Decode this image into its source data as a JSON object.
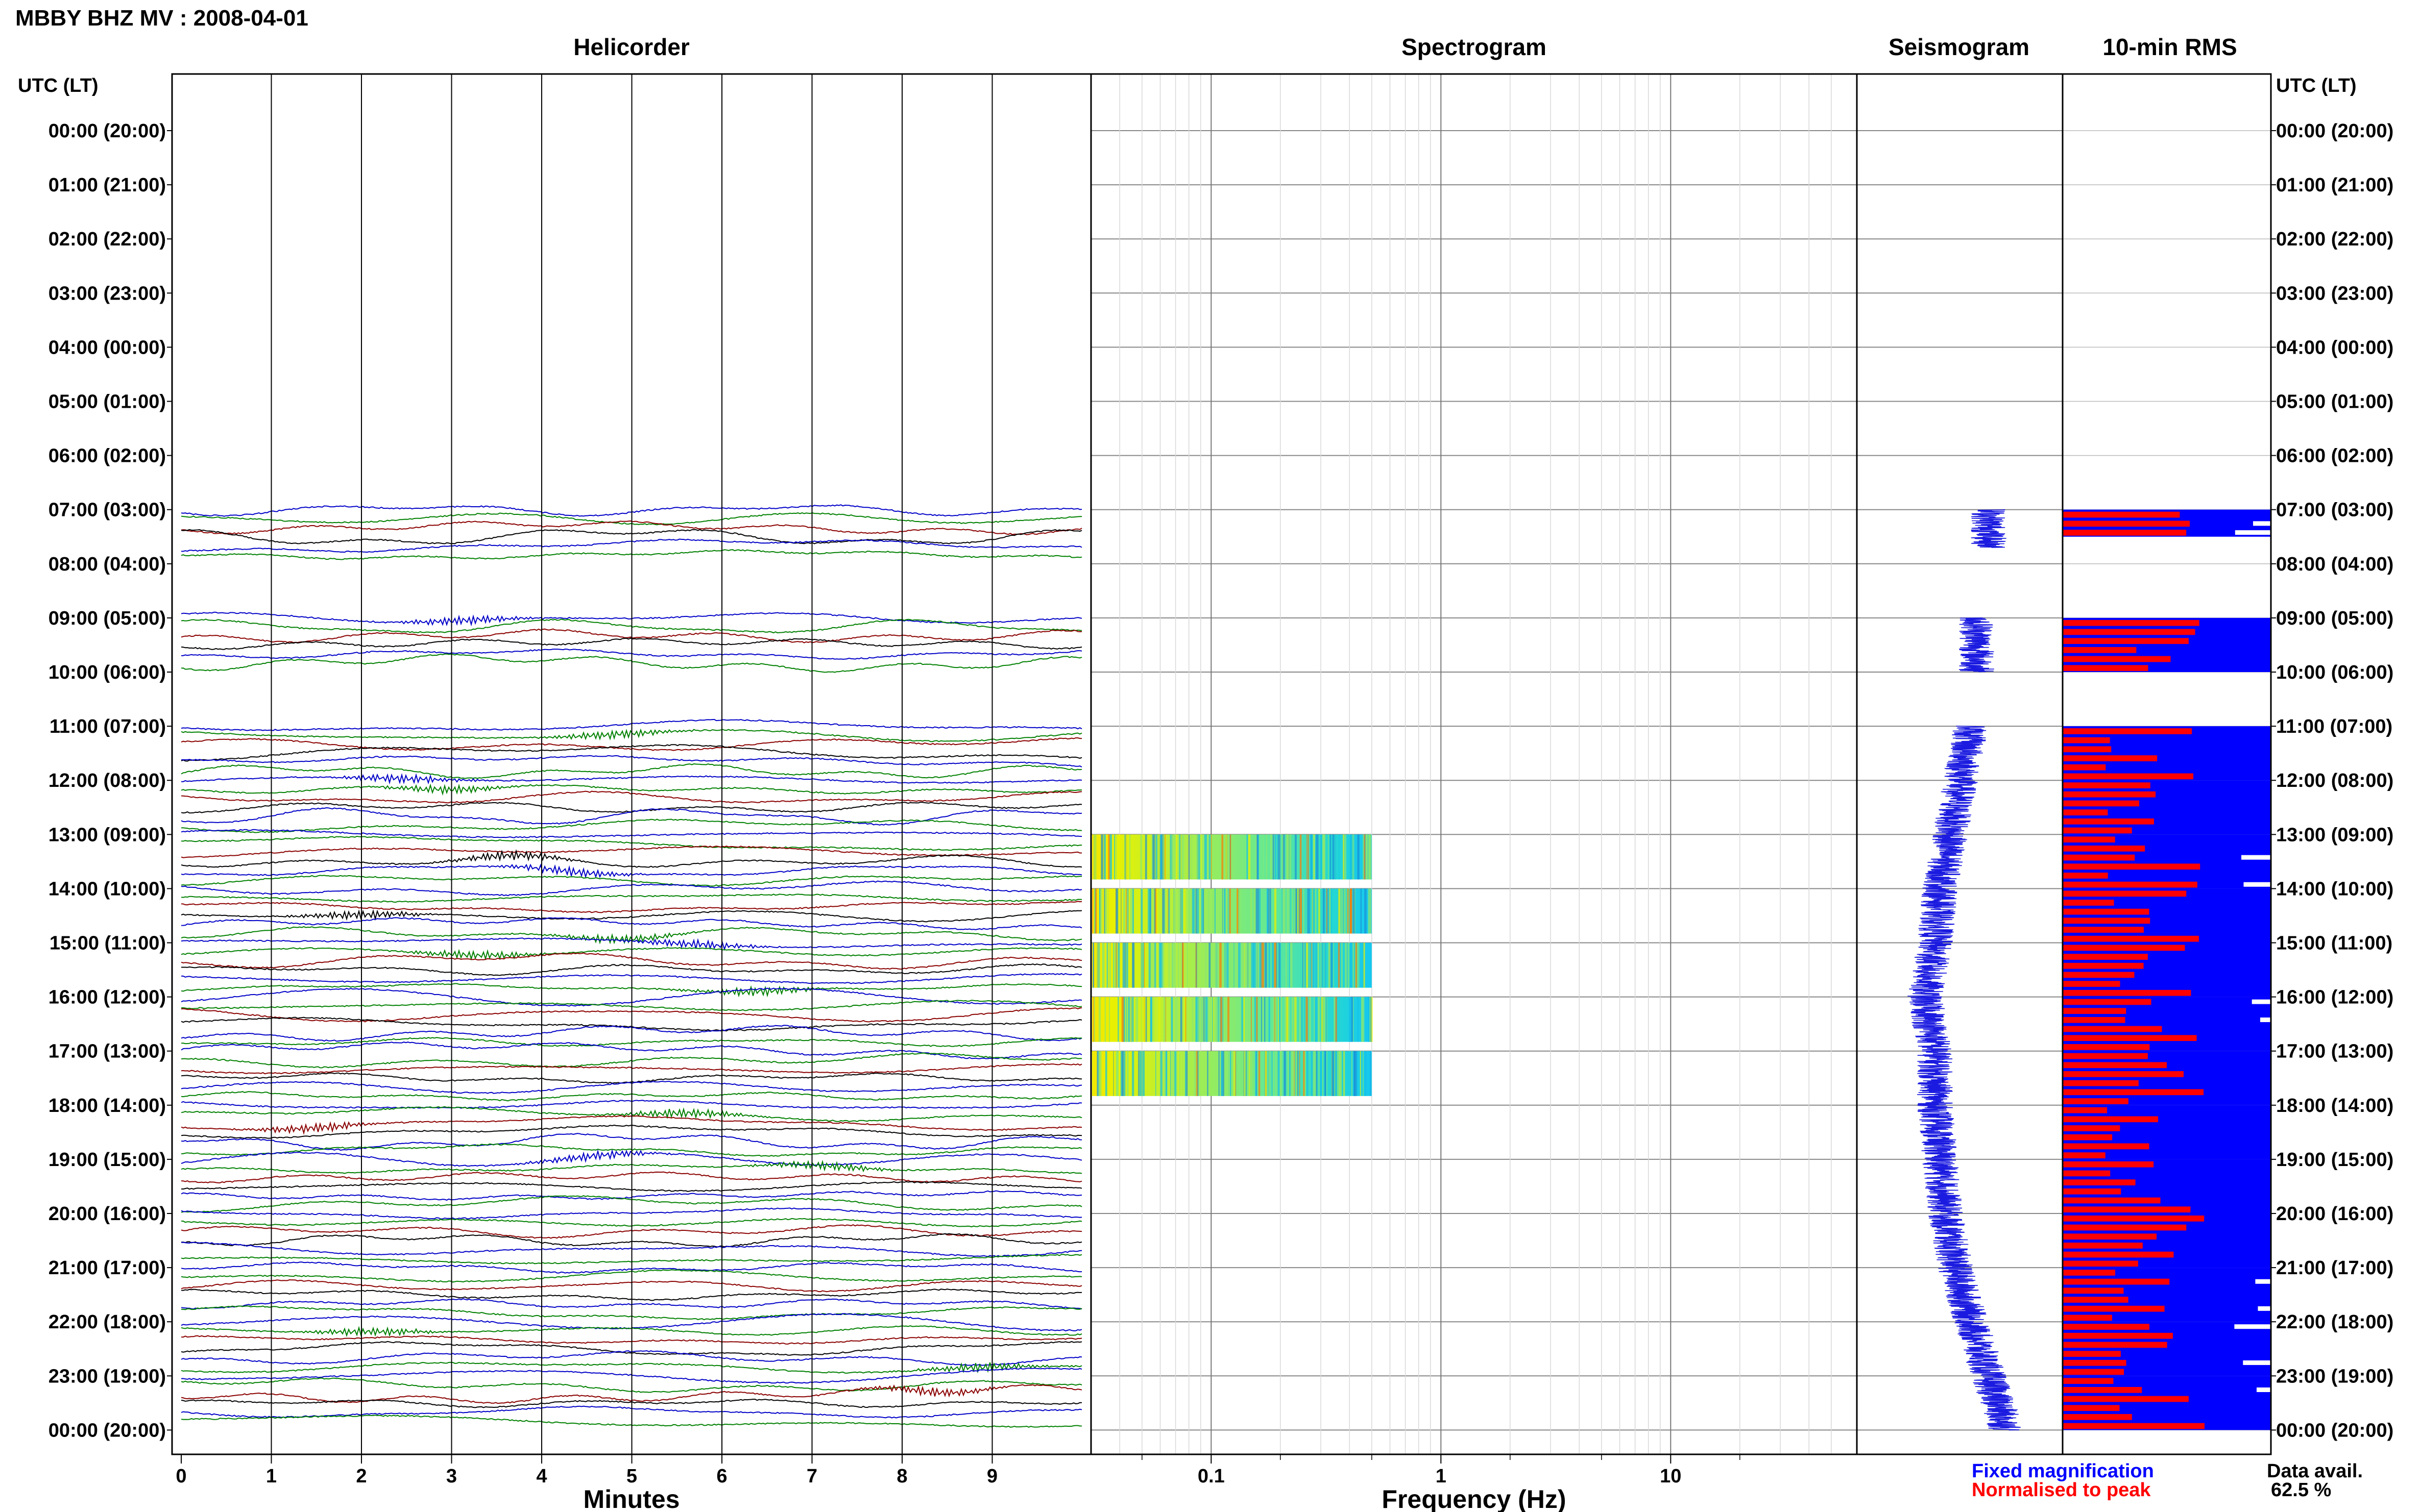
{
  "title": "MBBY BHZ MV : 2008-04-01",
  "panels": {
    "helicorder": "Helicorder",
    "spectrogram": "Spectrogram",
    "seismogram": "Seismogram",
    "rms": "10-min RMS"
  },
  "time_axis_header": "UTC (LT)",
  "hour_labels": [
    "00:00 (20:00)",
    "01:00 (21:00)",
    "02:00 (22:00)",
    "03:00 (23:00)",
    "04:00 (00:00)",
    "05:00 (01:00)",
    "06:00 (02:00)",
    "07:00 (03:00)",
    "08:00 (04:00)",
    "09:00 (05:00)",
    "10:00 (06:00)",
    "11:00 (07:00)",
    "12:00 (08:00)",
    "13:00 (09:00)",
    "14:00 (10:00)",
    "15:00 (11:00)",
    "16:00 (12:00)",
    "17:00 (13:00)",
    "18:00 (14:00)",
    "19:00 (15:00)",
    "20:00 (16:00)",
    "21:00 (17:00)",
    "22:00 (18:00)",
    "23:00 (19:00)",
    "00:00 (20:00)"
  ],
  "minutes_axis": {
    "label": "Minutes",
    "ticks": [
      "0",
      "1",
      "2",
      "3",
      "4",
      "5",
      "6",
      "7",
      "8",
      "9"
    ]
  },
  "frequency_axis": {
    "label": "Frequency (Hz)",
    "ticks": [
      "0.1",
      "1",
      "10"
    ],
    "scale": "log"
  },
  "legend": {
    "fixed": "Fixed magnification",
    "normalised": "Normalised to peak",
    "fixed_color": "#0000ff",
    "normalised_color": "#ff0000"
  },
  "data_avail_label": "Data avail.",
  "data_avail_value": "62.5 %",
  "trace_colors": [
    "#0000c8",
    "#008000",
    "#8b0000",
    "#000000"
  ],
  "chart_data": {
    "type": "heatmap",
    "data_availability_pct": 62.5,
    "data_hours_utc": [
      7,
      9,
      11,
      12,
      13,
      14,
      15,
      16,
      17,
      18,
      19,
      20,
      21,
      22,
      23
    ],
    "spectrogram_hours_utc": [
      13,
      14,
      15,
      16,
      17
    ],
    "spectrogram_freq_range_hz": [
      0.03,
      0.5
    ],
    "frequency_range_hz": [
      0.03,
      50
    ],
    "minutes_range": [
      0,
      10
    ]
  }
}
